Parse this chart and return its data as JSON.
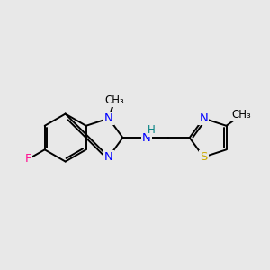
{
  "background_color": "#e8e8e8",
  "bond_color": "#000000",
  "atom_colors": {
    "N": "#0000ff",
    "F": "#ff1493",
    "S": "#ccaa00",
    "H": "#008080",
    "C": "#000000"
  },
  "bond_lw": 1.4,
  "font_size": 9.5,
  "font_size_small": 8.5
}
